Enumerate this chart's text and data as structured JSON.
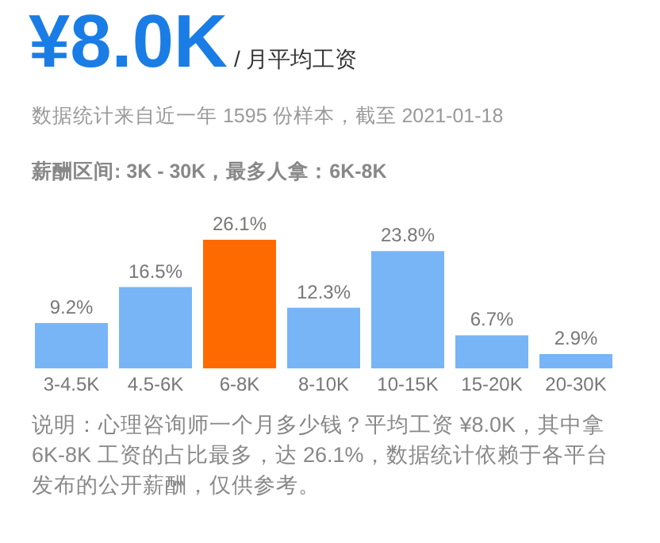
{
  "chart_data": {
    "type": "bar",
    "title": "¥8.0K",
    "subtitle": "/ 月平均工资",
    "annotations": [
      "数据统计来自近一年 1595 份样本，截至 2021-01-18",
      "薪酬区间: 3K - 30K，最多人拿：6K-8K",
      "说明：心理咨询师一个月多少钱？平均工资 ¥8.0K，其中拿6K-8K 工资的占比最多，达 26.1%，数据统计依赖于各平台发布的公开薪酬，仅供参考。"
    ],
    "categories": [
      "3-4.5K",
      "4.5-6K",
      "6-8K",
      "8-10K",
      "10-15K",
      "15-20K",
      "20-30K"
    ],
    "values": [
      9.2,
      16.5,
      26.1,
      12.3,
      23.8,
      6.7,
      2.9
    ],
    "value_labels": [
      "9.2%",
      "16.5%",
      "26.1%",
      "12.3%",
      "23.8%",
      "6.7%",
      "2.9%"
    ],
    "colors": [
      "#77b5f7",
      "#77b5f7",
      "#ff6a00",
      "#77b5f7",
      "#77b5f7",
      "#77b5f7",
      "#77b5f7"
    ]
  }
}
